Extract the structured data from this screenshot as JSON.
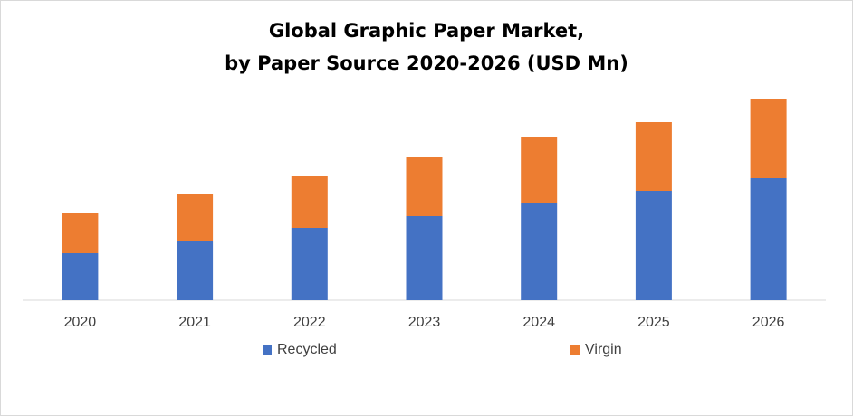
{
  "chart_data": {
    "type": "bar",
    "stacked": true,
    "title_line1": "Global Graphic Paper Market,",
    "title_line2": "by Paper Source 2020-2026 (USD Mn)",
    "categories": [
      "2020",
      "2021",
      "2022",
      "2023",
      "2024",
      "2025",
      "2026"
    ],
    "series": [
      {
        "name": "Recycled",
        "color": "#4472c4",
        "values": [
          52,
          66,
          80,
          93,
          107,
          121,
          135
        ]
      },
      {
        "name": "Virgin",
        "color": "#ed7d31",
        "values": [
          44,
          51,
          57,
          65,
          73,
          76,
          87
        ]
      }
    ],
    "ylim": [
      0,
      230
    ],
    "y_axis_visible": false,
    "grid": false,
    "legend_position": "bottom"
  }
}
